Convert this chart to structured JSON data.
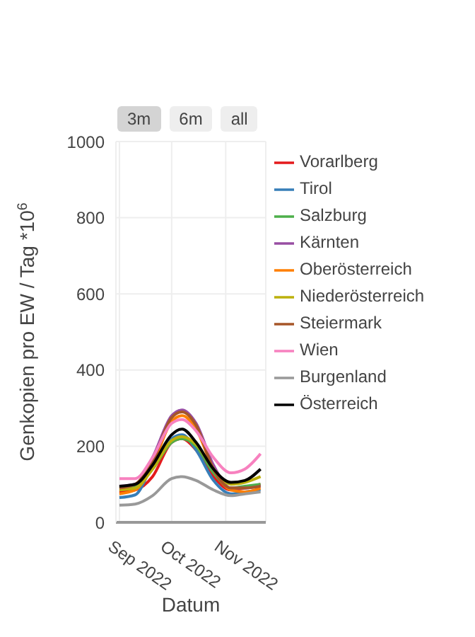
{
  "chart_data": {
    "type": "line",
    "xlabel": "Datum",
    "ylabel": "Genkopien pro EW / Tag *10$^{6}$",
    "annotations": [
      "3m",
      "6m",
      "all"
    ],
    "x": [
      "2022-09-01",
      "2022-09-10",
      "2022-09-20",
      "2022-10-01",
      "2022-10-07",
      "2022-10-15",
      "2022-10-25",
      "2022-11-04",
      "2022-11-12",
      "2022-11-21"
    ],
    "xlim": [
      "2022-08-30",
      "2022-11-24"
    ],
    "xticks": [
      {
        "value": "2022-09-01",
        "label": "Sep 2022"
      },
      {
        "value": "2022-10-01",
        "label": "Oct 2022"
      },
      {
        "value": "2022-11-01",
        "label": "Nov 2022"
      }
    ],
    "ylim": [
      0,
      1000
    ],
    "yticks": [
      0,
      200,
      400,
      600,
      800,
      1000
    ],
    "grid": true,
    "legend": "top right",
    "marker": "none",
    "line_style": "solid",
    "series": [
      {
        "name": "Vorarlberg",
        "color": "#e41a1c",
        "values": [
          80,
          85,
          120,
          210,
          220,
          190,
          120,
          85,
          90,
          100
        ]
      },
      {
        "name": "Tirol",
        "color": "#377eb8",
        "values": [
          65,
          72,
          150,
          220,
          230,
          190,
          110,
          75,
          80,
          85
        ]
      },
      {
        "name": "Salzburg",
        "color": "#4daf4a",
        "values": [
          90,
          95,
          140,
          210,
          220,
          200,
          130,
          90,
          95,
          100
        ]
      },
      {
        "name": "Kärnten",
        "color": "#984ea3",
        "values": [
          95,
          100,
          170,
          280,
          295,
          260,
          150,
          90,
          90,
          95
        ]
      },
      {
        "name": "Oberösterreich",
        "color": "#ff7f00",
        "values": [
          75,
          85,
          150,
          265,
          280,
          245,
          140,
          85,
          80,
          90
        ]
      },
      {
        "name": "Niederösterreich",
        "color": "#bcb00c",
        "values": [
          85,
          90,
          140,
          215,
          225,
          205,
          140,
          100,
          105,
          120
        ]
      },
      {
        "name": "Steiermark",
        "color": "#a65628",
        "values": [
          90,
          100,
          160,
          275,
          290,
          255,
          140,
          90,
          90,
          95
        ]
      },
      {
        "name": "Wien",
        "color": "#f781bf",
        "values": [
          115,
          115,
          170,
          260,
          270,
          240,
          170,
          130,
          140,
          180
        ]
      },
      {
        "name": "Burgenland",
        "color": "#999999",
        "values": [
          45,
          48,
          70,
          115,
          120,
          110,
          85,
          70,
          75,
          80
        ]
      },
      {
        "name": "Österreich",
        "color": "#000000",
        "values": [
          95,
          100,
          150,
          230,
          245,
          210,
          140,
          105,
          110,
          140
        ]
      }
    ]
  }
}
